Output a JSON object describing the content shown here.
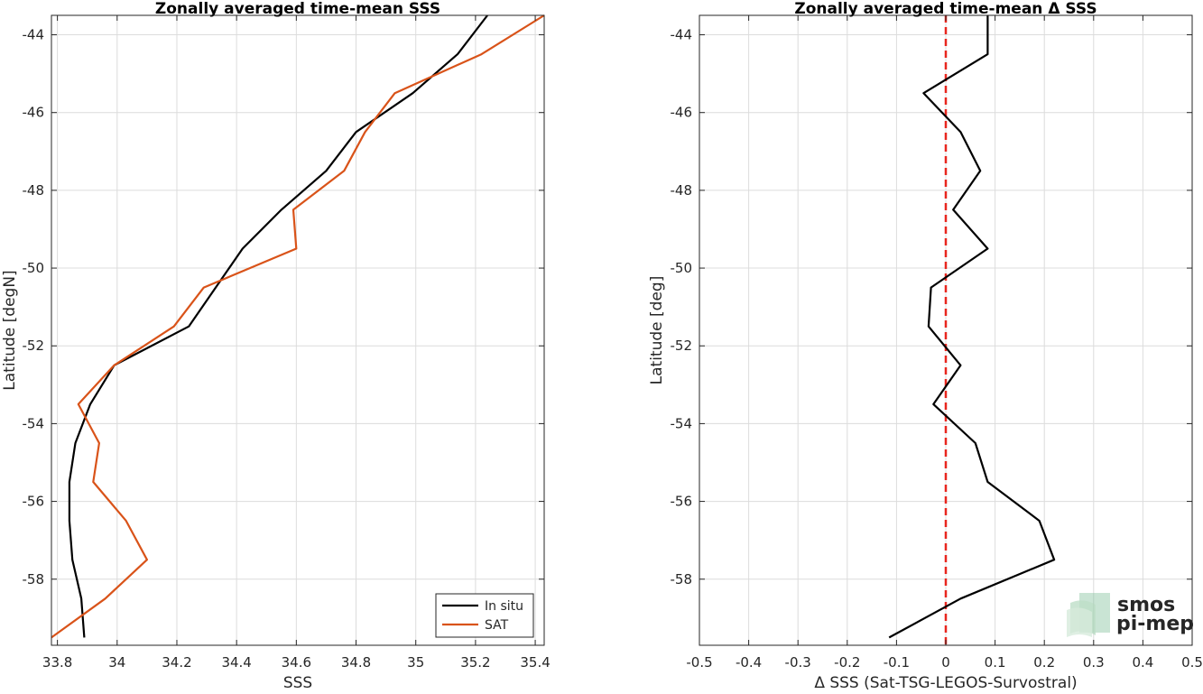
{
  "colors": {
    "insitu": "#000000",
    "sat": "#D95319",
    "zero_line": "#E8261E",
    "logo_text": "#7CBE97"
  },
  "logo": {
    "line1": "smos",
    "line2": "pi-mep"
  },
  "chart_data": [
    {
      "type": "line",
      "title": "Zonally averaged time-mean SSS",
      "xlabel": "SSS",
      "ylabel": "Latitude [degN]",
      "xlim": [
        33.78,
        35.43
      ],
      "ylim": [
        -59.7,
        -43.5
      ],
      "xticks": [
        "33.8",
        "34",
        "34.2",
        "34.4",
        "34.6",
        "34.8",
        "35",
        "35.2",
        "35.4"
      ],
      "xtick_values": [
        33.8,
        34.0,
        34.2,
        34.4,
        34.6,
        34.8,
        35.0,
        35.2,
        35.4
      ],
      "yticks": [
        "-44",
        "-46",
        "-48",
        "-50",
        "-52",
        "-54",
        "-56",
        "-58"
      ],
      "ytick_values": [
        -44,
        -46,
        -48,
        -50,
        -52,
        -54,
        -56,
        -58
      ],
      "grid": true,
      "legend": "bottom-right",
      "series": [
        {
          "name": "In situ",
          "color": "#000000",
          "points": [
            [
              35.24,
              -43.5
            ],
            [
              35.14,
              -44.5
            ],
            [
              34.99,
              -45.5
            ],
            [
              34.8,
              -46.5
            ],
            [
              34.7,
              -47.5
            ],
            [
              34.55,
              -48.5
            ],
            [
              34.42,
              -49.5
            ],
            [
              34.33,
              -50.5
            ],
            [
              34.24,
              -51.5
            ],
            [
              33.99,
              -52.5
            ],
            [
              33.91,
              -53.5
            ],
            [
              33.86,
              -54.5
            ],
            [
              33.84,
              -55.5
            ],
            [
              33.84,
              -56.5
            ],
            [
              33.85,
              -57.5
            ],
            [
              33.88,
              -58.5
            ],
            [
              33.89,
              -59.5
            ]
          ]
        },
        {
          "name": "SAT",
          "color": "#D95319",
          "points": [
            [
              35.43,
              -43.5
            ],
            [
              35.22,
              -44.5
            ],
            [
              34.93,
              -45.5
            ],
            [
              34.83,
              -46.5
            ],
            [
              34.76,
              -47.5
            ],
            [
              34.59,
              -48.5
            ],
            [
              34.6,
              -49.5
            ],
            [
              34.29,
              -50.5
            ],
            [
              34.19,
              -51.5
            ],
            [
              33.99,
              -52.5
            ],
            [
              33.87,
              -53.5
            ],
            [
              33.94,
              -54.5
            ],
            [
              33.92,
              -55.5
            ],
            [
              34.03,
              -56.5
            ],
            [
              34.1,
              -57.5
            ],
            [
              33.96,
              -58.5
            ],
            [
              33.78,
              -59.5
            ]
          ]
        }
      ]
    },
    {
      "type": "line",
      "title": "Zonally averaged time-mean Δ SSS",
      "xlabel": "Δ SSS (Sat-TSG-LEGOS-Survostral)",
      "ylabel": "Latitude [deg]",
      "xlim": [
        -0.5,
        0.5
      ],
      "ylim": [
        -59.7,
        -43.5
      ],
      "xticks": [
        "-0.5",
        "-0.4",
        "-0.3",
        "-0.2",
        "-0.1",
        "0",
        "0.1",
        "0.2",
        "0.3",
        "0.4",
        "0.5"
      ],
      "xtick_values": [
        -0.5,
        -0.4,
        -0.3,
        -0.2,
        -0.1,
        0,
        0.1,
        0.2,
        0.3,
        0.4,
        0.5
      ],
      "yticks": [
        "-44",
        "-46",
        "-48",
        "-50",
        "-52",
        "-54",
        "-56",
        "-58"
      ],
      "ytick_values": [
        -44,
        -46,
        -48,
        -50,
        -52,
        -54,
        -56,
        -58
      ],
      "grid": true,
      "reference_line": {
        "x": 0,
        "style": "dashed",
        "color": "#E8261E"
      },
      "series": [
        {
          "color": "#000000",
          "points": [
            [
              0.085,
              -43.5
            ],
            [
              0.085,
              -44.5
            ],
            [
              -0.045,
              -45.5
            ],
            [
              0.03,
              -46.5
            ],
            [
              0.07,
              -47.5
            ],
            [
              0.015,
              -48.5
            ],
            [
              0.085,
              -49.5
            ],
            [
              -0.03,
              -50.5
            ],
            [
              -0.035,
              -51.5
            ],
            [
              0.03,
              -52.5
            ],
            [
              -0.025,
              -53.5
            ],
            [
              0.06,
              -54.5
            ],
            [
              0.085,
              -55.5
            ],
            [
              0.19,
              -56.5
            ],
            [
              0.22,
              -57.5
            ],
            [
              0.03,
              -58.5
            ],
            [
              -0.115,
              -59.5
            ]
          ]
        }
      ]
    }
  ]
}
